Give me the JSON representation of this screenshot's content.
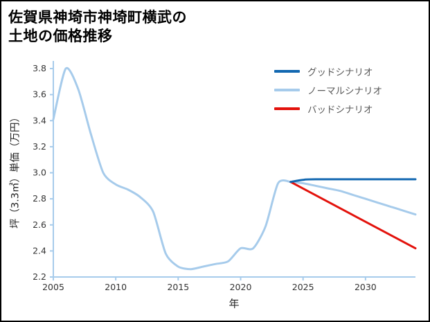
{
  "title": {
    "line1": "佐賀県神埼市神埼町横武の",
    "line2": "土地の価格推移"
  },
  "chart_data": {
    "type": "line",
    "title": "佐賀県神埼市神埼町横武の土地の価格推移",
    "xlabel": "年",
    "ylabel": "坪（3.3㎡）単価（万円）",
    "xlim": [
      2005,
      2034
    ],
    "ylim": [
      2.2,
      3.8
    ],
    "x_ticks": [
      2005,
      2010,
      2015,
      2020,
      2025,
      2030
    ],
    "y_ticks": [
      2.2,
      2.4,
      2.6,
      2.8,
      3.0,
      3.2,
      3.4,
      3.6,
      3.8
    ],
    "grid": false,
    "axis_color": "#a6cbeb",
    "tick_label_color": "#333333",
    "legend_position": "top-right-inside",
    "series": [
      {
        "id": "price-history",
        "color": "#a6cbeb",
        "x": [
          2005,
          2006,
          2007,
          2008,
          2009,
          2010,
          2011,
          2012,
          2013,
          2014,
          2015,
          2016,
          2017,
          2018,
          2019,
          2020,
          2021,
          2022,
          2023,
          2024
        ],
        "y": [
          3.41,
          3.8,
          3.64,
          3.3,
          3.0,
          2.91,
          2.87,
          2.81,
          2.7,
          2.38,
          2.28,
          2.26,
          2.28,
          2.3,
          2.32,
          2.42,
          2.42,
          2.59,
          2.92,
          2.93
        ]
      },
      {
        "id": "normal-scenario",
        "label": "ノーマルシナリオ",
        "color": "#a6cbeb",
        "x": [
          2024,
          2025,
          2026,
          2027,
          2028,
          2029,
          2030,
          2031,
          2032,
          2033,
          2034
        ],
        "y": [
          2.93,
          2.92,
          2.9,
          2.88,
          2.86,
          2.83,
          2.8,
          2.77,
          2.74,
          2.71,
          2.68
        ]
      },
      {
        "id": "bad-scenario",
        "label": "バッドシナリオ",
        "color": "#e3120c",
        "x": [
          2024,
          2034
        ],
        "y": [
          2.93,
          2.42
        ]
      },
      {
        "id": "good-scenario",
        "label": "グッドシナリオ",
        "color": "#1268b1",
        "x": [
          2024,
          2025,
          2026,
          2034
        ],
        "y": [
          2.93,
          2.945,
          2.95,
          2.95
        ]
      }
    ],
    "legend": [
      {
        "label": "グッドシナリオ",
        "color": "#1268b1"
      },
      {
        "label": "ノーマルシナリオ",
        "color": "#a6cbeb"
      },
      {
        "label": "バッドシナリオ",
        "color": "#e3120c"
      }
    ]
  }
}
